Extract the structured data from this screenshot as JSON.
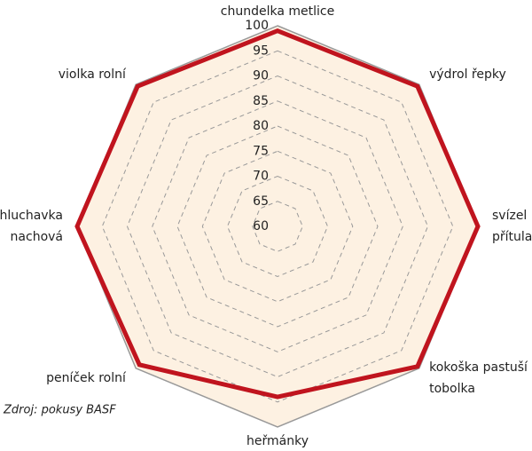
{
  "chart_data": {
    "type": "radar",
    "categories": [
      [
        "chundelka metlice"
      ],
      [
        "výdrol řepky"
      ],
      [
        "svízel",
        "přítula"
      ],
      [
        "kokoška pastuší",
        "tobolka"
      ],
      [
        "heřmánky"
      ],
      [
        "peníček rolní"
      ],
      [
        "hluchavka",
        "nachová"
      ],
      [
        "violka rolní"
      ]
    ],
    "series": [
      {
        "color": "#c0141e",
        "values": [
          99,
          99.5,
          100,
          99.5,
          94,
          99,
          100,
          99.5
        ]
      }
    ],
    "ylim": [
      60,
      100
    ],
    "yticks": [
      60,
      65,
      70,
      75,
      80,
      85,
      90,
      95,
      100
    ],
    "grid": true,
    "background_color": "#fdf1e2",
    "source": "Zdroj: pokusy BASF"
  }
}
